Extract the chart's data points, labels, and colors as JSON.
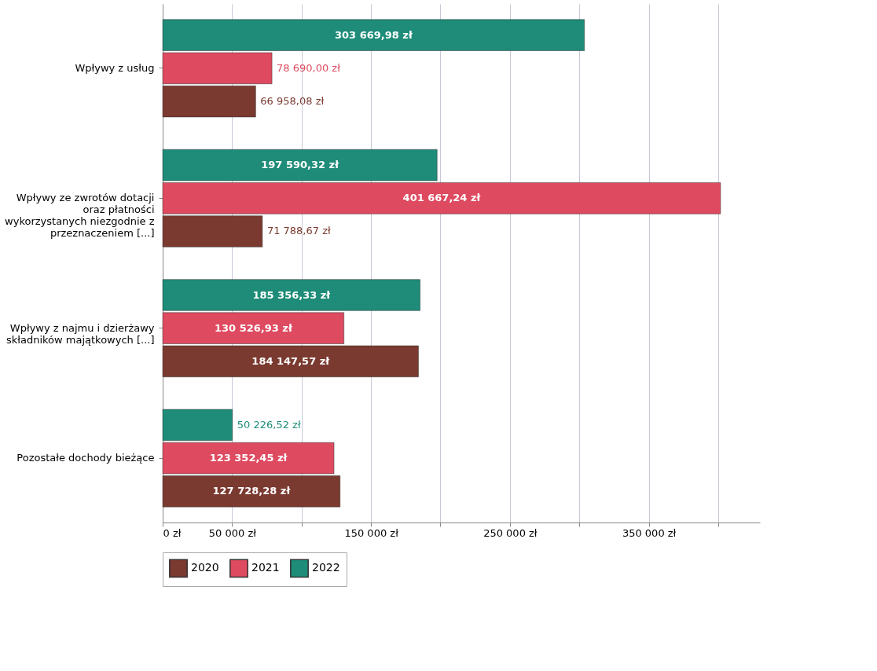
{
  "chart_data": {
    "type": "bar",
    "orientation": "horizontal",
    "categories": [
      "Wpływy z usług",
      "Wpływy ze zwrotów dotacji oraz płatności wykorzystanych niezgodnie z przeznaczeniem [...]",
      "Wpływy z najmu i dzierżawy składników majątkowych [...]",
      "Pozostałe dochody bieżące"
    ],
    "series": [
      {
        "name": "2020",
        "color": "#7a3a30",
        "values": [
          66958.08,
          71788.67,
          184147.57,
          127728.28
        ],
        "value_labels": [
          "66 958,08 zł",
          "71 788,67 zł",
          "184 147,57 zł",
          "127 728,28 zł"
        ]
      },
      {
        "name": "2021",
        "color": "#de4a60",
        "values": [
          78690.0,
          401667.24,
          130526.93,
          123352.45
        ],
        "value_labels": [
          "78 690,00 zł",
          "401 667,24 zł",
          "130 526,93 zł",
          "123 352,45 zł"
        ]
      },
      {
        "name": "2022",
        "color": "#1e8c78",
        "values": [
          303669.98,
          197590.32,
          185356.33,
          50226.52
        ],
        "value_labels": [
          "303 669,98 zł",
          "197 590,32 zł",
          "185 356,33 zł",
          "50 226,52 zł"
        ]
      }
    ],
    "xlim": [
      0,
      430000
    ],
    "xticks": [
      {
        "value": 0,
        "label": "0 zł"
      },
      {
        "value": 50000,
        "label": "50 000 zł"
      },
      {
        "value": 100000,
        "label": null
      },
      {
        "value": 150000,
        "label": "150 000 zł"
      },
      {
        "value": 200000,
        "label": null
      },
      {
        "value": 250000,
        "label": "250 000 zł"
      },
      {
        "value": 300000,
        "label": null
      },
      {
        "value": 350000,
        "label": "350 000 zł"
      },
      {
        "value": 400000,
        "label": null
      }
    ],
    "grid": "x",
    "legend": "bottom"
  }
}
